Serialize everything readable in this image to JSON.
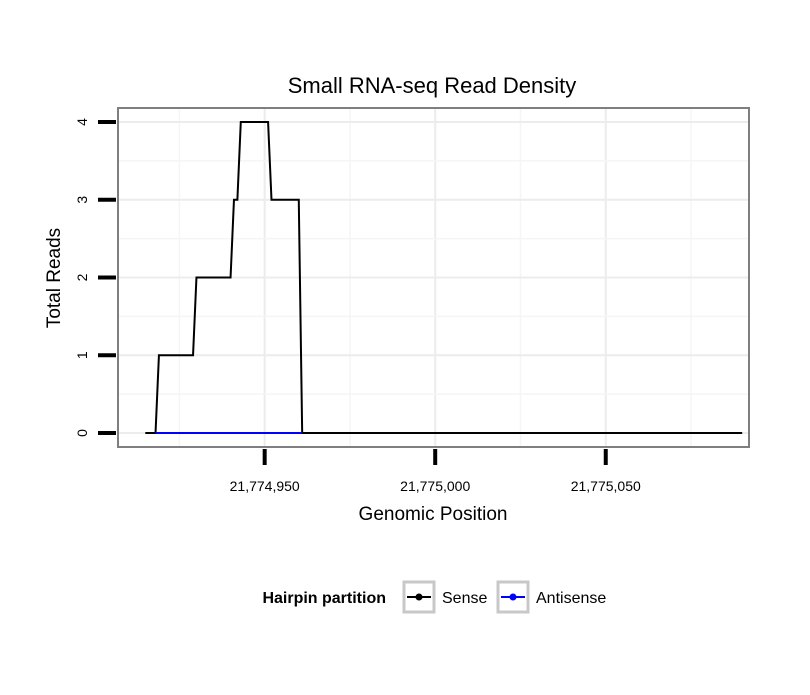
{
  "chart_data": {
    "type": "line",
    "title": "Small RNA-seq Read Density",
    "xlabel": "Genomic Position",
    "ylabel": "Total Reads",
    "xlim": [
      21774907,
      21775092
    ],
    "ylim": [
      -0.18,
      4.18
    ],
    "x_ticks": [
      {
        "value": 21774950,
        "label": "21,774,950"
      },
      {
        "value": 21775000,
        "label": "21,775,000"
      },
      {
        "value": 21775050,
        "label": "21,775,050"
      }
    ],
    "y_ticks": [
      {
        "value": 0,
        "label": "0"
      },
      {
        "value": 1,
        "label": "1"
      },
      {
        "value": 2,
        "label": "2"
      },
      {
        "value": 3,
        "label": "3"
      },
      {
        "value": 4,
        "label": "4"
      }
    ],
    "grid": true,
    "legend": {
      "title": "Hairpin partition",
      "placement": "bottom"
    },
    "series": [
      {
        "name": "Sense",
        "color": "#000000",
        "points": [
          [
            21774915,
            0
          ],
          [
            21774918,
            0
          ],
          [
            21774919,
            1
          ],
          [
            21774929,
            1
          ],
          [
            21774930,
            2
          ],
          [
            21774940,
            2
          ],
          [
            21774941,
            3
          ],
          [
            21774942,
            3
          ],
          [
            21774943,
            4
          ],
          [
            21774951,
            4
          ],
          [
            21774952,
            3
          ],
          [
            21774960,
            3
          ],
          [
            21774961,
            0
          ],
          [
            21775090,
            0
          ]
        ]
      },
      {
        "name": "Antisense",
        "color": "#0000ff",
        "points": [
          [
            21774918,
            0
          ],
          [
            21774961,
            0
          ]
        ]
      }
    ]
  }
}
